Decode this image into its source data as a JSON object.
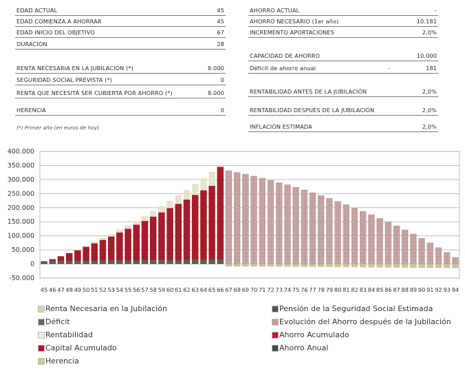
{
  "left_table": [
    {
      "label": "EDAD ACTUAL",
      "value": "45"
    },
    {
      "label": "EDAD COMIENZA A AHORRAR",
      "value": "45"
    },
    {
      "label": "EDAD INICIO DEL OBJETIVO",
      "value": "67"
    },
    {
      "label": "DURACIÓN",
      "value": "28"
    },
    {
      "label": "RENTA NECESARIA EN LA JUBILACIÓN (*)",
      "value": "8.000"
    },
    {
      "label": "SEGURIDAD SOCIAL PREVISTA (*)",
      "value": "0"
    },
    {
      "label": "RENTA QUE NECESITA SER CUBIERTA POR AHORRO (*)",
      "value": "8.000"
    },
    {
      "label": "HERENCIA",
      "value": "0"
    }
  ],
  "note": "(*) Primer año (en euros de hoy)",
  "right_table": [
    {
      "label": "AHORRO ACTUAL",
      "mid": "",
      "value": "-"
    },
    {
      "label": "AHORRO NECESARIO (1er año)",
      "mid": "",
      "value": "10.181"
    },
    {
      "label": "INCREMENTO APORTACIONES",
      "mid": "",
      "value": "2,0%"
    },
    {
      "label": "CAPACIDAD DE AHORRO",
      "mid": "",
      "value": "10.000"
    },
    {
      "label": "Déficit de ahorro anual",
      "mid": "-",
      "value": "181"
    },
    {
      "label": "RENTABILIDAD ANTES DE LA JUBILACIÓN",
      "mid": "",
      "value": "2,0%"
    },
    {
      "label": "RENTABILIDAD DESPUÉS DE LA JUBILACIÓN",
      "mid": "",
      "value": "2,0%"
    },
    {
      "label": "INFLACIÓN ESTIMADA",
      "mid": "",
      "value": "2,0%"
    }
  ],
  "legend": [
    {
      "label": "Renta Necesaria en la Jubilación",
      "color": "#c9c59a"
    },
    {
      "label": "Pensión de la Seguridad Social Estimada",
      "color": "#4a5a48"
    },
    {
      "label": "Déficit",
      "color": "#5a6a68"
    },
    {
      "label": "Evolución del Ahorro después de la Jubilación",
      "color": "#c4a6a6"
    },
    {
      "label": "Rentabilidad",
      "color": "#e8e6d2"
    },
    {
      "label": "Ahorro Acumulado",
      "color": "#a81a28"
    },
    {
      "label": "Capital Acumulado",
      "color": "#b01a2c"
    },
    {
      "label": "Ahorro Anual",
      "color": "#3e5040"
    },
    {
      "label": "Herencia",
      "color": "#c8c08a"
    }
  ],
  "chart_data": {
    "type": "bar",
    "ylim": [
      -50000,
      400000
    ],
    "yticks": [
      "400.000",
      "350.000",
      "300.000",
      "250.000",
      "200.000",
      "150.000",
      "100.000",
      "50.000",
      "0",
      "-50.000"
    ],
    "grid": true,
    "categories": [
      "45",
      "46",
      "47",
      "48",
      "49",
      "50",
      "51",
      "52",
      "53",
      "54",
      "55",
      "56",
      "57",
      "58",
      "59",
      "60",
      "61",
      "62",
      "63",
      "64",
      "65",
      "66",
      "67",
      "68",
      "69",
      "70",
      "71",
      "72",
      "73",
      "74",
      "75",
      "76",
      "77",
      "78",
      "79",
      "80",
      "81",
      "82",
      "83",
      "84",
      "85",
      "86",
      "87",
      "88",
      "89",
      "90",
      "91",
      "92",
      "93",
      "94"
    ],
    "series": [
      {
        "name": "Ahorro Anual",
        "values": [
          10000,
          10200,
          10400,
          10600,
          10800,
          11000,
          11300,
          11500,
          11700,
          12000,
          12200,
          12400,
          12700,
          13000,
          13200,
          13500,
          13700,
          14000,
          14300,
          14600,
          14900,
          15200,
          0,
          0,
          0,
          0,
          0,
          0,
          0,
          0,
          0,
          0,
          0,
          0,
          0,
          0,
          0,
          0,
          0,
          0,
          0,
          0,
          0,
          0,
          0,
          0,
          0,
          0,
          0,
          0
        ]
      },
      {
        "name": "Ahorro Acumulado",
        "values": [
          0,
          7000,
          17000,
          28000,
          38000,
          50000,
          62000,
          74000,
          86000,
          100000,
          113000,
          127000,
          140000,
          155000,
          170000,
          185000,
          200000,
          215000,
          231000,
          247000,
          263000,
          330000,
          0,
          0,
          0,
          0,
          0,
          0,
          0,
          0,
          0,
          0,
          0,
          0,
          0,
          0,
          0,
          0,
          0,
          0,
          0,
          0,
          0,
          0,
          0,
          0,
          0,
          0,
          0,
          0
        ]
      },
      {
        "name": "Rentabilidad",
        "values": [
          0,
          0,
          1000,
          1500,
          2500,
          3500,
          5000,
          6500,
          8500,
          10000,
          12000,
          14000,
          17000,
          20000,
          23000,
          26000,
          30000,
          34000,
          39000,
          44000,
          50000,
          0,
          0,
          0,
          0,
          0,
          0,
          0,
          0,
          0,
          0,
          0,
          0,
          0,
          0,
          0,
          0,
          0,
          0,
          0,
          0,
          0,
          0,
          0,
          0,
          0,
          0,
          0,
          0,
          0
        ]
      },
      {
        "name": "Evolución del Ahorro después de la Jubilación",
        "values": [
          0,
          0,
          0,
          0,
          0,
          0,
          0,
          0,
          0,
          0,
          0,
          0,
          0,
          0,
          0,
          0,
          0,
          0,
          0,
          0,
          0,
          0,
          332000,
          326000,
          320000,
          313000,
          306000,
          298000,
          290000,
          282000,
          273000,
          264000,
          254000,
          244000,
          234000,
          223000,
          212000,
          200000,
          188000,
          176000,
          163000,
          150000,
          136000,
          122000,
          107000,
          92000,
          76000,
          59000,
          42000,
          24000
        ]
      },
      {
        "name": "Renta Necesaria en la Jubilación",
        "values": [
          0,
          0,
          0,
          0,
          0,
          0,
          0,
          0,
          0,
          0,
          0,
          0,
          0,
          0,
          0,
          0,
          0,
          0,
          0,
          0,
          0,
          0,
          -8500,
          -8700,
          -8800,
          -9000,
          -9200,
          -9400,
          -9600,
          -9800,
          -10000,
          -10200,
          -10400,
          -10600,
          -10800,
          -11000,
          -11200,
          -11400,
          -11700,
          -11900,
          -12100,
          -12400,
          -12600,
          -12900,
          -13100,
          -13400,
          -13700,
          -13900,
          -14200,
          -14500
        ]
      }
    ]
  }
}
